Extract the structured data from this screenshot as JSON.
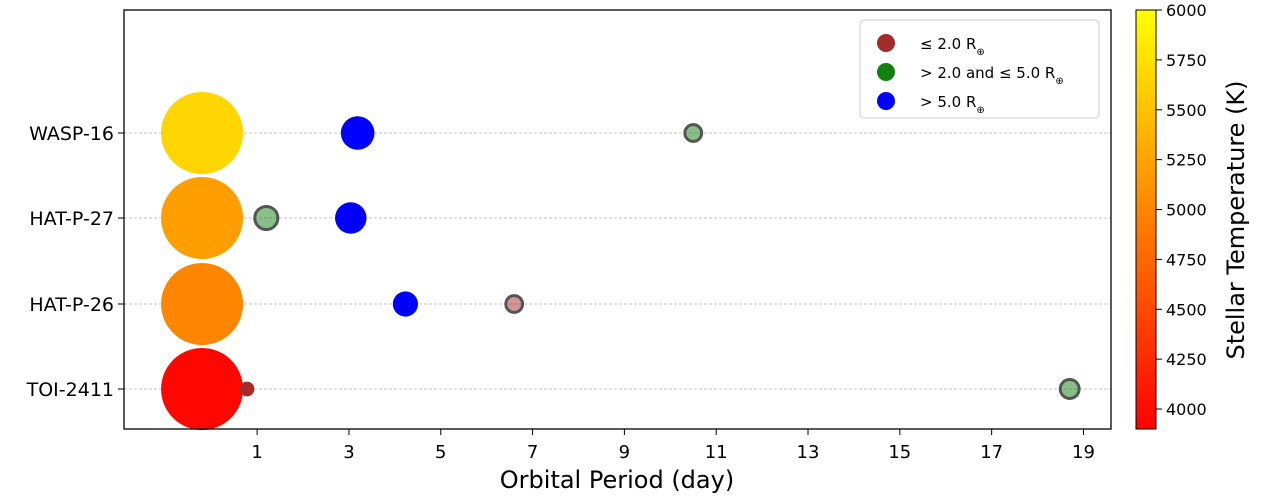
{
  "chart_data": {
    "type": "scatter",
    "title": "",
    "xlabel": "Orbital Period (day)",
    "ylabel": "",
    "xlim": [
      -1.9,
      19.6
    ],
    "xticks": [
      1,
      3,
      5,
      7,
      9,
      11,
      13,
      15,
      17,
      19
    ],
    "systems": [
      "TOI-2411",
      "HAT-P-26",
      "HAT-P-27",
      "WASP-16"
    ],
    "grid": "horizontal dashed",
    "stars": [
      {
        "system": "TOI-2411",
        "x": -0.2,
        "temperature": 3950
      },
      {
        "system": "HAT-P-26",
        "x": -0.2,
        "temperature": 5000
      },
      {
        "system": "HAT-P-27",
        "x": -0.2,
        "temperature": 5200
      },
      {
        "system": "WASP-16",
        "x": -0.2,
        "temperature": 5650
      }
    ],
    "planets": [
      {
        "system": "TOI-2411",
        "period": 0.78,
        "category": "small",
        "size": 0.35
      },
      {
        "system": "TOI-2411",
        "period": 18.7,
        "category": "medium",
        "size": 0.45
      },
      {
        "system": "HAT-P-26",
        "period": 4.23,
        "category": "large",
        "size": 0.6
      },
      {
        "system": "HAT-P-26",
        "period": 6.6,
        "category": "small",
        "size": 0.4
      },
      {
        "system": "HAT-P-27",
        "period": 1.2,
        "category": "medium",
        "size": 0.55
      },
      {
        "system": "HAT-P-27",
        "period": 3.04,
        "category": "large",
        "size": 0.75
      },
      {
        "system": "WASP-16",
        "period": 3.19,
        "category": "large",
        "size": 0.8
      },
      {
        "system": "WASP-16",
        "period": 10.5,
        "category": "medium",
        "size": 0.4
      }
    ],
    "legend": {
      "placement": "top-right",
      "entries": [
        {
          "key": "small",
          "prefix": "≤ 2.0 R",
          "color": "#a52a2a"
        },
        {
          "key": "medium",
          "prefix": "> 2.0 and ≤ 5.0 R",
          "color": "#118011"
        },
        {
          "key": "large",
          "prefix": "> 5.0 R",
          "color": "#0000ff"
        }
      ],
      "subscript": "⊕"
    },
    "colorbar": {
      "label": "Stellar Temperature (K)",
      "range": [
        3900,
        6000
      ],
      "ticks": [
        4000,
        4250,
        4500,
        4750,
        5000,
        5250,
        5500,
        5750,
        6000
      ],
      "colors": [
        "#ff0000",
        "#ffff00"
      ]
    },
    "category_colors": {
      "small": "#a52a2a",
      "medium": "#118011",
      "large": "#0000ff"
    },
    "medium_fill_alpha": 0.5,
    "small_fill_alpha": 0.5
  }
}
